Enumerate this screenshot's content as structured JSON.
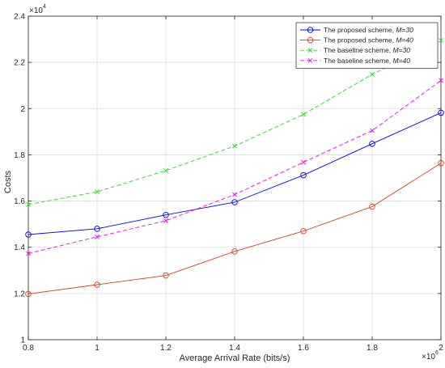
{
  "chart_data": {
    "type": "line",
    "title": "",
    "xlabel": "Average Arrival Rate (bits/s)",
    "ylabel": "Costs",
    "x_exponent_label": "×10",
    "x_exponent_power": "6",
    "y_exponent_label": "×10",
    "y_exponent_power": "4",
    "x": [
      0.8,
      1.0,
      1.2,
      1.4,
      1.6,
      1.8,
      2.0
    ],
    "xlim": [
      0.8,
      2.0
    ],
    "ylim": [
      1.0,
      2.4
    ],
    "x_ticks": [
      "0.8",
      "1",
      "1.2",
      "1.4",
      "1.6",
      "1.8",
      "2"
    ],
    "y_ticks": [
      "1",
      "1.2",
      "1.4",
      "1.6",
      "1.8",
      "2",
      "2.2",
      "2.4"
    ],
    "grid": true,
    "legend_position": "top-right",
    "series": [
      {
        "name": "The proposed scheme,",
        "name_m": "M=30",
        "color": "#0000ff",
        "marker": "circle",
        "line": "solid",
        "values": [
          1.455,
          1.48,
          1.54,
          1.595,
          1.712,
          1.848,
          1.982
        ]
      },
      {
        "name": "The proposed scheme,",
        "name_m": "M=40",
        "color": "#d9401f",
        "marker": "circle",
        "line": "solid",
        "values": [
          1.198,
          1.238,
          1.278,
          1.382,
          1.47,
          1.576,
          1.764
        ]
      },
      {
        "name": "The baseline scheme,",
        "name_m": "M=30",
        "color": "#22dd22",
        "marker": "x",
        "line": "dashed",
        "values": [
          1.585,
          1.64,
          1.732,
          1.838,
          1.975,
          2.148,
          2.295
        ]
      },
      {
        "name": "The baseline scheme,",
        "name_m": "M=40",
        "color": "#ff00ff",
        "marker": "x",
        "line": "dashed",
        "values": [
          1.373,
          1.445,
          1.515,
          1.628,
          1.768,
          1.905,
          2.122
        ]
      }
    ]
  }
}
